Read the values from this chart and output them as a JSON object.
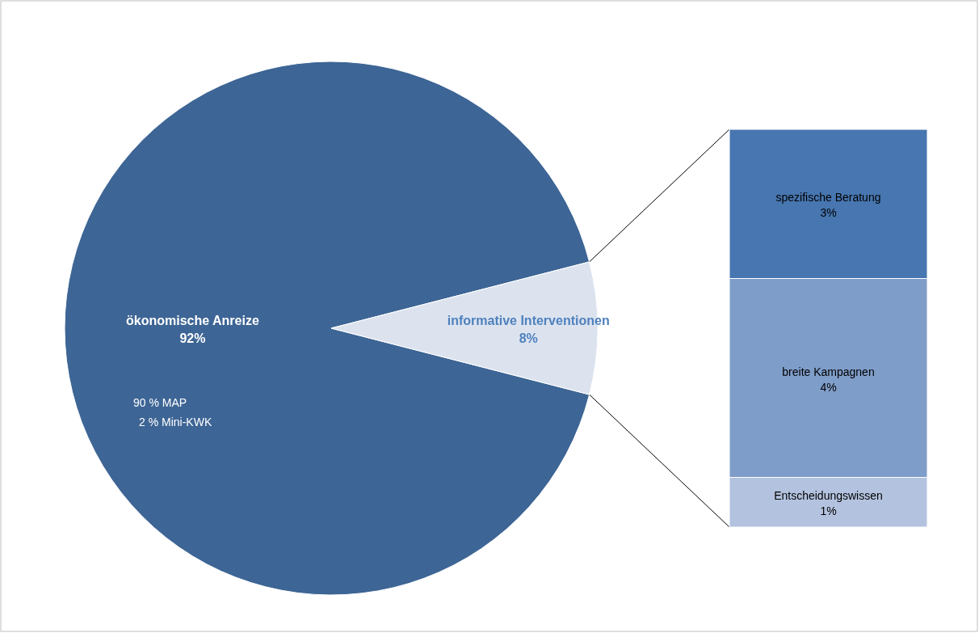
{
  "chart_data": [
    {
      "type": "pie",
      "categories": [
        "ökonomische Anreize",
        "informative Interventionen"
      ],
      "values": [
        92,
        8
      ],
      "colors": [
        "#3d6595",
        "#dce3ef"
      ],
      "value_labels": [
        "92%",
        "8%"
      ],
      "annotations": [
        "90 % MAP",
        "2 % Mini-KWK"
      ]
    },
    {
      "type": "bar",
      "stacked": true,
      "categories": [
        null
      ],
      "series": [
        {
          "name": "Entscheidungswissen",
          "color": "#b3c3df",
          "values": [
            1
          ],
          "value_labels": [
            "1%"
          ]
        },
        {
          "name": "breite Kampagnen",
          "color": "#7f9dc9",
          "values": [
            4
          ],
          "value_labels": [
            "4%"
          ]
        },
        {
          "name": "spezifische Beratung",
          "color": "#4776b0",
          "values": [
            3
          ],
          "value_labels": [
            "3%"
          ]
        }
      ]
    }
  ]
}
